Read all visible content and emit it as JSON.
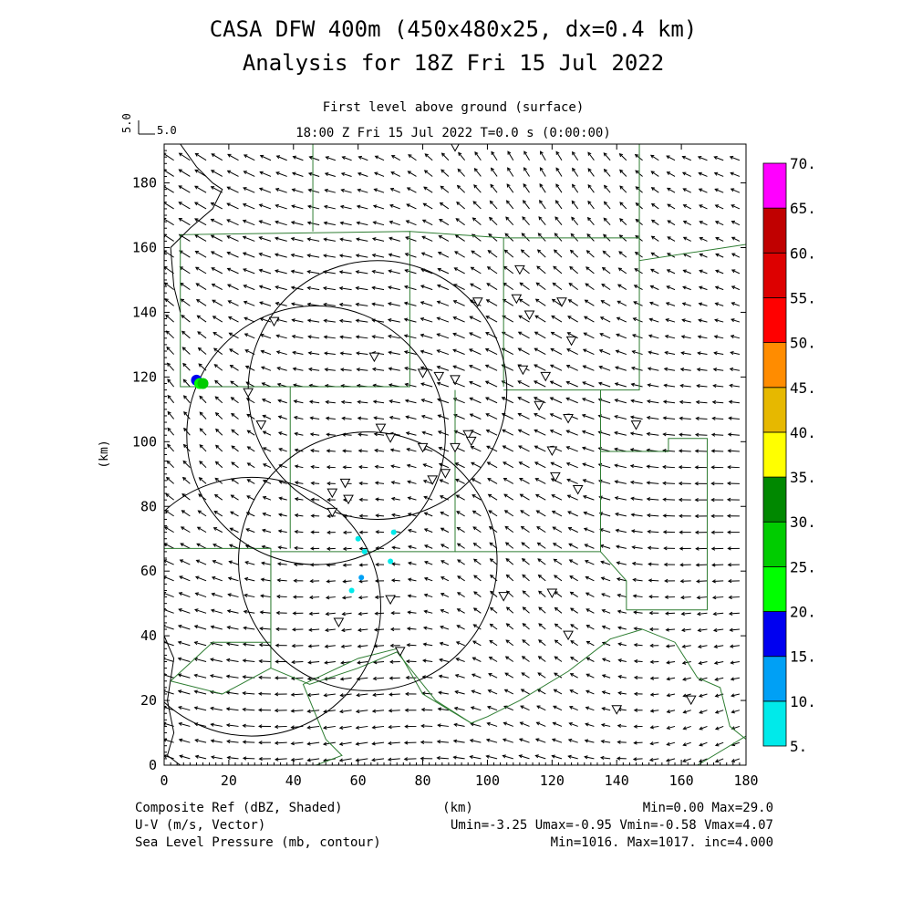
{
  "chart_data": {
    "type": "heatmap",
    "title_line1": "CASA DFW 400m (450x480x25, dx=0.4 km)",
    "title_line2": "Analysis for 18Z Fri 15 Jul 2022",
    "subtitle_line1": "First level above ground (surface)",
    "subtitle_line2": "18:00 Z Fri 15 Jul 2022    T=0.0 s (0:00:00)",
    "vector_key_label": "5.0",
    "vector_key_label_side": "5.0",
    "xlabel": "(km)",
    "ylabel": "(km)",
    "xlim": [
      0,
      180
    ],
    "ylim": [
      0,
      192
    ],
    "xticks": [
      "0",
      "20",
      "40",
      "60",
      "80",
      "100",
      "120",
      "140",
      "160",
      "180"
    ],
    "yticks": [
      "0",
      "20",
      "40",
      "60",
      "80",
      "100",
      "120",
      "140",
      "160",
      "180"
    ],
    "colorbar": {
      "levels": [
        "5.",
        "10.",
        "15.",
        "20.",
        "25.",
        "30.",
        "35.",
        "40.",
        "45.",
        "50.",
        "55.",
        "60.",
        "65.",
        "70."
      ],
      "colors": [
        "#00eaea",
        "#00a0f5",
        "#0000f0",
        "#00ff00",
        "#00cc00",
        "#008800",
        "#ffff00",
        "#e6b800",
        "#ff8c00",
        "#ff0000",
        "#dd0000",
        "#c00000",
        "#ff00ff"
      ]
    },
    "radar_circles": [
      {
        "center": [
          27,
          49
        ]
      },
      {
        "center": [
          63,
          63
        ]
      },
      {
        "center": [
          47,
          102
        ]
      },
      {
        "center": [
          66,
          116
        ]
      }
    ],
    "radar_circle_radius_km": 40,
    "reflectivity_points": [
      {
        "x": 10,
        "y": 119,
        "value": 15
      },
      {
        "x": 11,
        "y": 118,
        "value": 22
      },
      {
        "x": 12,
        "y": 118,
        "value": 27
      },
      {
        "x": 71,
        "y": 72,
        "value": 8
      },
      {
        "x": 60,
        "y": 70,
        "value": 6
      },
      {
        "x": 70,
        "y": 63,
        "value": 8
      },
      {
        "x": 61,
        "y": 58,
        "value": 10
      },
      {
        "x": 58,
        "y": 54,
        "value": 9
      },
      {
        "x": 62,
        "y": 66,
        "value": 6
      }
    ],
    "station_markers": [
      [
        90,
        191
      ],
      [
        110,
        153
      ],
      [
        97,
        143
      ],
      [
        109,
        144
      ],
      [
        123,
        143
      ],
      [
        113,
        139
      ],
      [
        34,
        137
      ],
      [
        126,
        131
      ],
      [
        65,
        126
      ],
      [
        111,
        122
      ],
      [
        80,
        121
      ],
      [
        85,
        120
      ],
      [
        90,
        119
      ],
      [
        118,
        120
      ],
      [
        26,
        115
      ],
      [
        116,
        111
      ],
      [
        30,
        105
      ],
      [
        67,
        104
      ],
      [
        70,
        101
      ],
      [
        125,
        107
      ],
      [
        146,
        105
      ],
      [
        94,
        102
      ],
      [
        80,
        98
      ],
      [
        90,
        98
      ],
      [
        95,
        100
      ],
      [
        120,
        97
      ],
      [
        83,
        88
      ],
      [
        87,
        90
      ],
      [
        121,
        89
      ],
      [
        56,
        87
      ],
      [
        52,
        84
      ],
      [
        57,
        82
      ],
      [
        128,
        85
      ],
      [
        52,
        78
      ],
      [
        70,
        51
      ],
      [
        105,
        52
      ],
      [
        120,
        53
      ],
      [
        54,
        44
      ],
      [
        125,
        40
      ],
      [
        73,
        35
      ],
      [
        140,
        17
      ],
      [
        163,
        20
      ]
    ],
    "vector_stats": "Umin=-3.25 Umax=-0.95 Vmin=-0.58 Vmax=4.07",
    "footer": {
      "left1": "Composite Ref (dBZ, Shaded)",
      "right1": "Min=0.00 Max=29.0",
      "left2": "U-V (m/s, Vector)",
      "left3": "Sea Level Pressure (mb, contour)",
      "right3": "Min=1016. Max=1017. inc=4.000"
    }
  },
  "colors": {
    "boundary": "#2e7d32",
    "frame": "#000000",
    "vector": "#000000"
  }
}
